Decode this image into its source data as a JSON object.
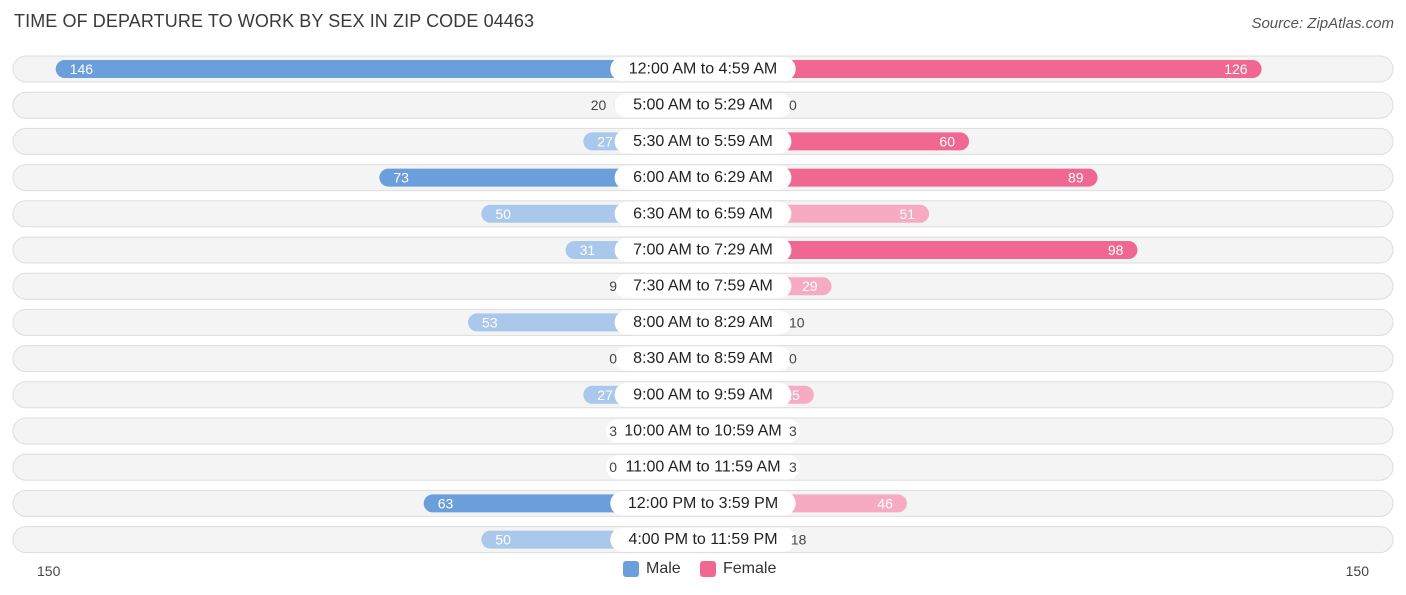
{
  "title": "TIME OF DEPARTURE TO WORK BY SEX IN ZIP CODE 04463",
  "source": "Source: ZipAtlas.com",
  "colors": {
    "male": "#6a9fdc",
    "male_light": "#a9c8ec",
    "female": "#f06892",
    "female_light": "#f7abc3"
  },
  "chart_data": {
    "type": "bar",
    "orientation": "horizontal-diverging",
    "categories": [
      "12:00 AM to 4:59 AM",
      "5:00 AM to 5:29 AM",
      "5:30 AM to 5:59 AM",
      "6:00 AM to 6:29 AM",
      "6:30 AM to 6:59 AM",
      "7:00 AM to 7:29 AM",
      "7:30 AM to 7:59 AM",
      "8:00 AM to 8:29 AM",
      "8:30 AM to 8:59 AM",
      "9:00 AM to 9:59 AM",
      "10:00 AM to 10:59 AM",
      "11:00 AM to 11:59 AM",
      "12:00 PM to 3:59 PM",
      "4:00 PM to 11:59 PM"
    ],
    "series": [
      {
        "name": "Male",
        "values": [
          146,
          20,
          27,
          73,
          50,
          31,
          9,
          53,
          0,
          27,
          3,
          0,
          63,
          50
        ]
      },
      {
        "name": "Female",
        "values": [
          126,
          0,
          60,
          89,
          51,
          98,
          29,
          10,
          0,
          25,
          3,
          3,
          46,
          18
        ]
      }
    ],
    "xlim": [
      -150,
      150
    ],
    "axis_min_label": "150",
    "axis_max_label": "150",
    "legend": [
      "Male",
      "Female"
    ],
    "legend_position": "bottom-center"
  }
}
